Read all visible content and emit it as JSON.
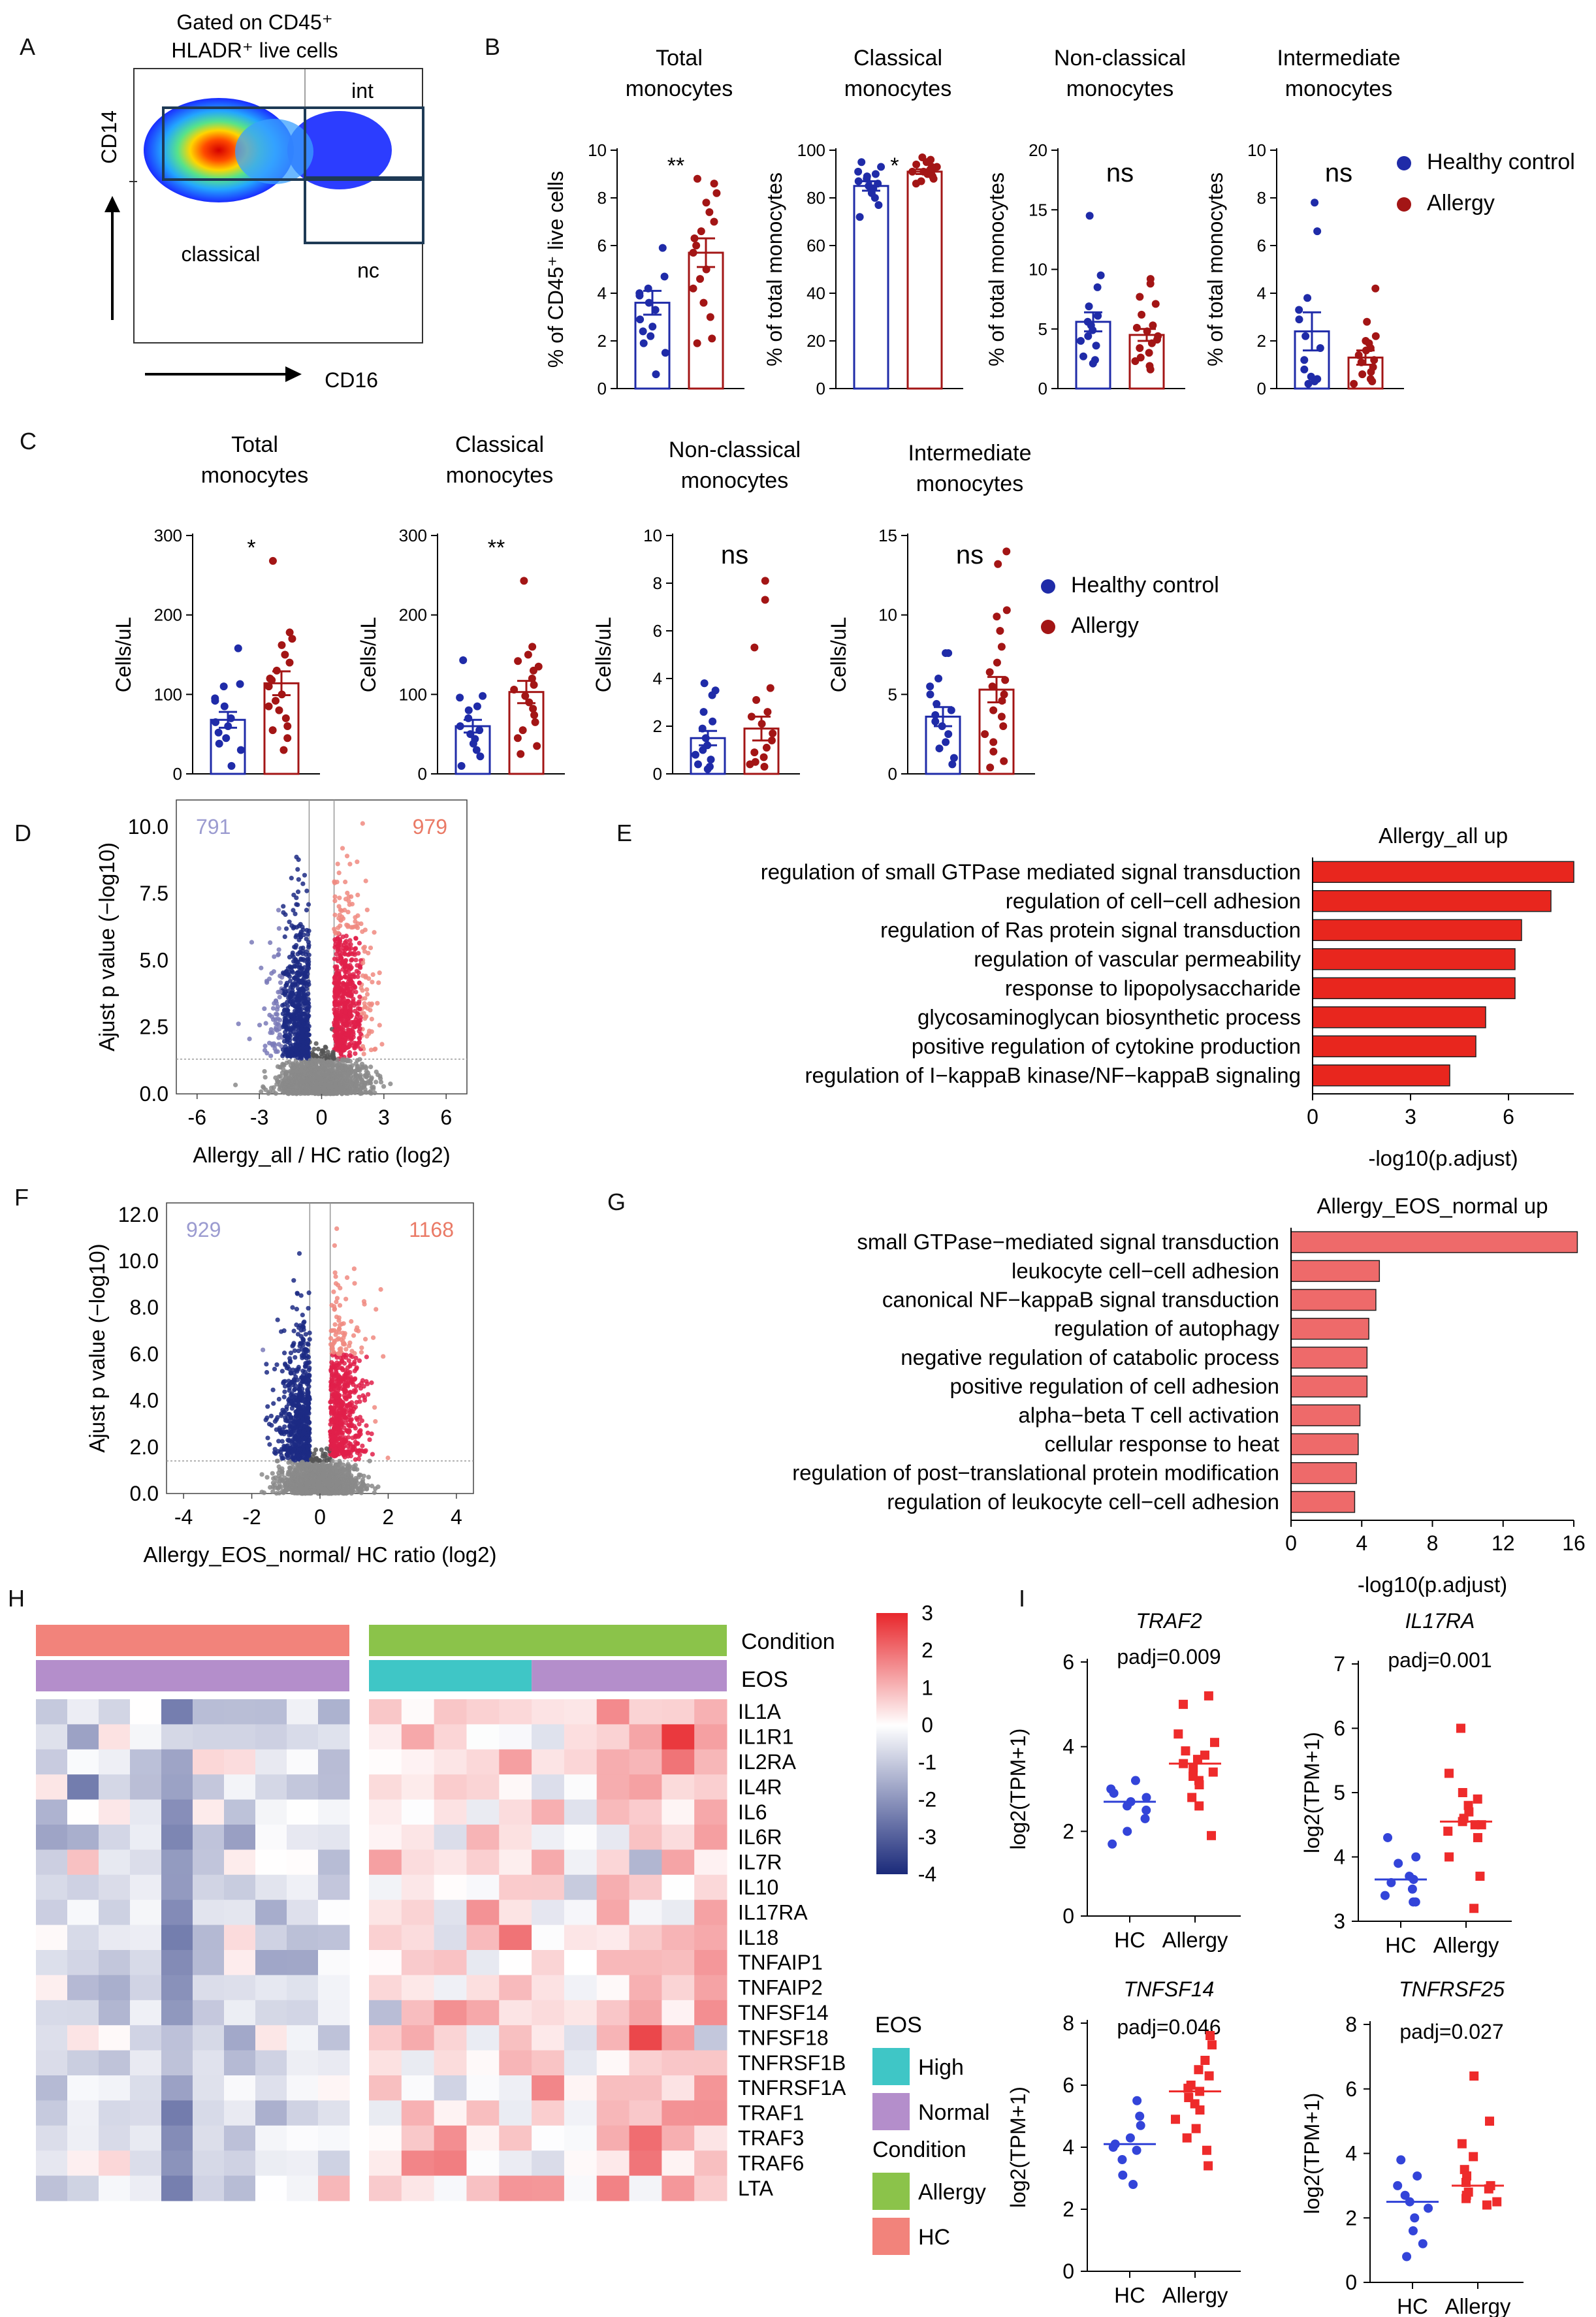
{
  "panel_labels": [
    "A",
    "B",
    "C",
    "D",
    "E",
    "F",
    "G",
    "H",
    "I"
  ],
  "flow": {
    "title_line1": "Gated on CD45⁺",
    "title_line2": "HLADR⁺ live cells",
    "gate_int": "int",
    "gate_classical": "classical",
    "gate_nc": "nc",
    "x_label": "CD16",
    "y_label": "CD14"
  },
  "legend": {
    "healthy": "Healthy control",
    "allergy": "Allergy",
    "healthy_color": "#1f2ba8",
    "allergy_color": "#a31515"
  },
  "heatmap": {
    "condition_label": "Condition",
    "eos_label": "EOS",
    "genes": [
      "IL1A",
      "IL1R1",
      "IL2RA",
      "IL4R",
      "IL6",
      "IL6R",
      "IL7R",
      "IL10",
      "IL17RA",
      "IL18",
      "TNFAIP1",
      "TNFAIP2",
      "TNFSF14",
      "TNFSF18",
      "TNFRSF1B",
      "TNFRSF1A",
      "TRAF1",
      "TRAF3",
      "TRAF6",
      "LTA"
    ],
    "scale_ticks": [
      "3",
      "2",
      "1",
      "0",
      "-1",
      "-2",
      "-3",
      "-4"
    ],
    "scale_range": [
      -4,
      3
    ],
    "legend_eos_title": "EOS",
    "legend_high": "High",
    "legend_normal": "Normal",
    "legend_condition_title": "Condition",
    "legend_allergy": "Allergy",
    "legend_hc": "HC",
    "color_hc": "#f2837b",
    "color_allergy": "#8bc34a",
    "color_high": "#3fc6c6",
    "color_normal": "#b48ecb",
    "hc_columns": 10,
    "allergy_high_columns": 5,
    "allergy_normal_columns": 6
  },
  "chart_data": [
    {
      "id": "B1",
      "type": "bar",
      "title": [
        "Total",
        "monocytes"
      ],
      "ylabel": "% of CD45⁺ live cells",
      "ylim": [
        0,
        10
      ],
      "yticks": [
        0,
        2,
        4,
        6,
        8,
        10
      ],
      "sig": "**",
      "categories": [
        "Healthy control",
        "Allergy"
      ],
      "series": [
        {
          "name": "Healthy control",
          "mean": 3.6,
          "sem": 0.5,
          "points": [
            5.9,
            4.7,
            4.2,
            4.0,
            3.9,
            3.6,
            3.3,
            2.9,
            2.6,
            2.4,
            2.2,
            1.9,
            1.5,
            0.6
          ]
        },
        {
          "name": "Allergy",
          "mean": 5.7,
          "sem": 0.6,
          "points": [
            8.8,
            8.6,
            8.2,
            7.8,
            7.4,
            7.0,
            6.6,
            6.3,
            6.0,
            5.7,
            5.0,
            4.6,
            4.2,
            3.6,
            3.0,
            2.1,
            1.9
          ]
        }
      ]
    },
    {
      "id": "B2",
      "type": "bar",
      "title": [
        "Classical",
        "monocytes"
      ],
      "ylabel": "% of total monocytes",
      "ylim": [
        0,
        100
      ],
      "yticks": [
        0,
        20,
        40,
        60,
        80,
        100
      ],
      "sig": "*",
      "categories": [
        "Healthy control",
        "Allergy"
      ],
      "series": [
        {
          "name": "Healthy control",
          "mean": 85,
          "sem": 2,
          "points": [
            95,
            93,
            91,
            90,
            89,
            88,
            87,
            86,
            85,
            84,
            82,
            80,
            77,
            72
          ]
        },
        {
          "name": "Allergy",
          "mean": 91,
          "sem": 1,
          "points": [
            97,
            96,
            95,
            94,
            93,
            93,
            92,
            92,
            91,
            91,
            90,
            90,
            89,
            88,
            87,
            86
          ]
        }
      ]
    },
    {
      "id": "B3",
      "type": "bar",
      "title": [
        "Non-classical",
        "monocytes"
      ],
      "ylabel": "% of total monocytes",
      "ylim": [
        0,
        20
      ],
      "yticks": [
        0,
        5,
        10,
        15,
        20
      ],
      "sig": "ns",
      "categories": [
        "Healthy control",
        "Allergy"
      ],
      "series": [
        {
          "name": "Healthy control",
          "mean": 5.6,
          "sem": 0.8,
          "points": [
            14.5,
            9.5,
            8.5,
            6.9,
            6.1,
            5.6,
            5.3,
            4.9,
            4.4,
            4.0,
            3.6,
            2.7,
            2.4,
            2.1
          ]
        },
        {
          "name": "Allergy",
          "mean": 4.5,
          "sem": 0.5,
          "points": [
            9.2,
            8.8,
            7.7,
            7.1,
            6.2,
            5.3,
            5.1,
            4.8,
            4.4,
            4.1,
            3.8,
            3.4,
            3.0,
            2.6,
            2.3,
            1.9,
            1.6
          ]
        }
      ]
    },
    {
      "id": "B4",
      "type": "bar",
      "title": [
        "Intermediate",
        "monocytes"
      ],
      "ylabel": "% of total monocytes",
      "ylim": [
        0,
        10
      ],
      "yticks": [
        0,
        2,
        4,
        6,
        8,
        10
      ],
      "sig": "ns",
      "categories": [
        "Healthy control",
        "Allergy"
      ],
      "series": [
        {
          "name": "Healthy control",
          "mean": 2.4,
          "sem": 0.8,
          "points": [
            7.8,
            6.6,
            3.8,
            3.3,
            2.9,
            2.2,
            1.7,
            1.2,
            0.8,
            0.5,
            0.4,
            0.3,
            0.2
          ]
        },
        {
          "name": "Allergy",
          "mean": 1.3,
          "sem": 0.3,
          "points": [
            4.2,
            2.8,
            2.2,
            2.0,
            1.9,
            1.7,
            1.6,
            1.4,
            1.2,
            1.1,
            0.9,
            0.7,
            0.6,
            0.4,
            0.3,
            0.2
          ]
        }
      ]
    },
    {
      "id": "C1",
      "type": "bar",
      "title": [
        "Total",
        "monocytes"
      ],
      "ylabel": "Cells/uL",
      "ylim": [
        0,
        300
      ],
      "yticks": [
        0,
        100,
        200,
        300
      ],
      "sig": "*",
      "categories": [
        "Healthy control",
        "Allergy"
      ],
      "series": [
        {
          "name": "Healthy control",
          "mean": 68,
          "sem": 10,
          "points": [
            158,
            113,
            110,
            95,
            92,
            85,
            70,
            65,
            60,
            52,
            45,
            38,
            30,
            10
          ]
        },
        {
          "name": "Allergy",
          "mean": 114,
          "sem": 15,
          "points": [
            268,
            178,
            170,
            162,
            150,
            140,
            130,
            120,
            118,
            110,
            100,
            92,
            85,
            80,
            70,
            60,
            55,
            45,
            30
          ]
        }
      ]
    },
    {
      "id": "C2",
      "type": "bar",
      "title": [
        "Classical",
        "monocytes"
      ],
      "ylabel": "Cells/uL",
      "ylim": [
        0,
        300
      ],
      "yticks": [
        0,
        100,
        200,
        300
      ],
      "sig": "**",
      "categories": [
        "Healthy control",
        "Allergy"
      ],
      "series": [
        {
          "name": "Healthy control",
          "mean": 60,
          "sem": 8,
          "points": [
            143,
            98,
            96,
            85,
            80,
            70,
            60,
            55,
            50,
            44,
            38,
            30,
            22,
            10
          ]
        },
        {
          "name": "Allergy",
          "mean": 103,
          "sem": 14,
          "points": [
            243,
            160,
            150,
            142,
            135,
            130,
            120,
            112,
            106,
            98,
            90,
            82,
            74,
            65,
            55,
            45,
            35,
            25
          ]
        }
      ]
    },
    {
      "id": "C3",
      "type": "bar",
      "title": [
        "Non-classical",
        "monocytes"
      ],
      "ylabel": "Cells/uL",
      "ylim": [
        0,
        10
      ],
      "yticks": [
        0,
        2,
        4,
        6,
        8,
        10
      ],
      "sig": "ns",
      "categories": [
        "Healthy control",
        "Allergy"
      ],
      "series": [
        {
          "name": "Healthy control",
          "mean": 1.5,
          "sem": 0.3,
          "points": [
            3.8,
            3.5,
            3.3,
            2.6,
            2.2,
            1.9,
            1.5,
            1.2,
            1.0,
            0.8,
            0.6,
            0.4,
            0.3,
            0.2
          ]
        },
        {
          "name": "Allergy",
          "mean": 1.9,
          "sem": 0.5,
          "points": [
            8.1,
            7.3,
            5.3,
            3.6,
            3.1,
            2.6,
            2.4,
            2.1,
            1.7,
            1.4,
            1.1,
            0.9,
            0.7,
            0.5,
            0.4,
            0.3
          ]
        }
      ]
    },
    {
      "id": "C4",
      "type": "bar",
      "title": [
        "Intermediate",
        "monocytes"
      ],
      "ylabel": "Cells/uL",
      "ylim": [
        0,
        15
      ],
      "yticks": [
        0,
        5,
        10,
        15
      ],
      "sig": "ns",
      "categories": [
        "Healthy control",
        "Allergy"
      ],
      "series": [
        {
          "name": "Healthy control",
          "mean": 3.6,
          "sem": 0.6,
          "points": [
            7.6,
            7.6,
            6.0,
            5.5,
            5.0,
            4.4,
            4.0,
            3.7,
            3.3,
            3.0,
            2.5,
            2.0,
            1.6,
            1.0,
            0.6
          ]
        },
        {
          "name": "Allergy",
          "mean": 5.3,
          "sem": 0.8,
          "points": [
            14.0,
            13.2,
            10.3,
            9.9,
            9.0,
            8.0,
            7.0,
            6.4,
            5.9,
            5.5,
            5.0,
            4.6,
            4.0,
            3.6,
            3.0,
            2.5,
            2.0,
            1.4,
            0.8,
            0.4
          ]
        }
      ]
    },
    {
      "id": "D",
      "type": "scatter",
      "subtype": "volcano",
      "xlabel": "Allergy_all / HC ratio (log2)",
      "ylabel": "Ajust p value (−log10)",
      "xlim": [
        -7,
        7
      ],
      "ylim": [
        0,
        11
      ],
      "xticks": [
        "-6",
        "-3",
        "0",
        "3",
        "6"
      ],
      "yticks": [
        "0.0",
        "2.5",
        "5.0",
        "7.5",
        "10.0"
      ],
      "down_count": "791",
      "up_count": "979",
      "fc_threshold": 0.6,
      "p_threshold": 1.3
    },
    {
      "id": "E",
      "type": "bar",
      "orientation": "horizontal",
      "title": "Allergy_all up",
      "xlabel": "-log10(p.adjust)",
      "xlim": [
        0,
        8
      ],
      "xticks": [
        "0",
        "3",
        "6"
      ],
      "color": "#e8261e",
      "categories": [
        "regulation of small GTPase mediated signal transduction",
        "regulation of cell−cell adhesion",
        "regulation of Ras protein signal transduction",
        "regulation of vascular permeability",
        "response to lipopolysaccharide",
        "glycosaminoglycan biosynthetic process",
        "positive regulation of cytokine production",
        "regulation of I−kappaB kinase/NF−kappaB signaling"
      ],
      "values": [
        8.0,
        7.3,
        6.4,
        6.2,
        6.2,
        5.3,
        5.0,
        4.2
      ]
    },
    {
      "id": "F",
      "type": "scatter",
      "subtype": "volcano",
      "xlabel": "Allergy_EOS_normal/ HC ratio (log2)",
      "ylabel": "Ajust p value (−log10)",
      "xlim": [
        -4.5,
        4.5
      ],
      "ylim": [
        0,
        12.5
      ],
      "xticks": [
        "-4",
        "-2",
        "0",
        "2",
        "4"
      ],
      "yticks": [
        "0.0",
        "2.0",
        "4.0",
        "6.0",
        "8.0",
        "10.0",
        "12.0"
      ],
      "down_count": "929",
      "up_count": "1168",
      "fc_threshold": 0.3,
      "p_threshold": 1.4
    },
    {
      "id": "G",
      "type": "bar",
      "orientation": "horizontal",
      "title": "Allergy_EOS_normal up",
      "xlabel": "-log10(p.adjust)",
      "xlim": [
        0,
        16
      ],
      "xticks": [
        "0",
        "4",
        "8",
        "12",
        "16"
      ],
      "color": "#ee6a6a",
      "categories": [
        "small GTPase−mediated signal transduction",
        "leukocyte cell−cell adhesion",
        "canonical NF−kappaB signal transduction",
        "regulation of autophagy",
        "negative regulation of catabolic process",
        "positive regulation of cell adhesion",
        "alpha−beta T cell activation",
        "cellular response to heat",
        "regulation of post−translational protein modification",
        "regulation of leukocyte cell−cell adhesion"
      ],
      "values": [
        16.2,
        5.0,
        4.8,
        4.4,
        4.3,
        4.3,
        3.9,
        3.8,
        3.7,
        3.6
      ]
    },
    {
      "id": "I1",
      "type": "scatter",
      "subtype": "dot",
      "gene": "TRAF2",
      "padj": "padj=0.009",
      "ylabel": "log2(TPM+1)",
      "ylim": [
        0,
        6
      ],
      "yticks": [
        0,
        2,
        4,
        6
      ],
      "categories": [
        "HC",
        "Allergy"
      ],
      "groups": [
        {
          "name": "HC",
          "median": 2.7,
          "points": [
            3.2,
            3.0,
            2.9,
            2.8,
            2.7,
            2.6,
            2.5,
            2.3,
            2.0,
            1.7
          ]
        },
        {
          "name": "Allergy",
          "median": 3.6,
          "points": [
            5.2,
            5.0,
            4.3,
            4.1,
            3.9,
            3.8,
            3.7,
            3.6,
            3.5,
            3.4,
            3.3,
            3.2,
            3.1,
            2.8,
            2.6,
            1.9
          ]
        }
      ]
    },
    {
      "id": "I2",
      "type": "scatter",
      "subtype": "dot",
      "gene": "IL17RA",
      "padj": "padj=0.001",
      "ylabel": "log2(TPM+1)",
      "ylim": [
        3,
        7
      ],
      "yticks": [
        3,
        4,
        5,
        6,
        7
      ],
      "categories": [
        "HC",
        "Allergy"
      ],
      "groups": [
        {
          "name": "HC",
          "median": 3.65,
          "points": [
            4.3,
            4.0,
            3.9,
            3.7,
            3.65,
            3.6,
            3.5,
            3.4,
            3.3,
            3.3
          ]
        },
        {
          "name": "Allergy",
          "median": 4.55,
          "points": [
            6.0,
            5.3,
            5.0,
            4.9,
            4.8,
            4.7,
            4.6,
            4.55,
            4.5,
            4.5,
            4.4,
            4.3,
            4.0,
            3.7,
            3.2
          ]
        }
      ]
    },
    {
      "id": "I3",
      "type": "scatter",
      "subtype": "dot",
      "gene": "TNFSF14",
      "padj": "padj=0.046",
      "ylabel": "log2(TPM+1)",
      "ylim": [
        0,
        8
      ],
      "yticks": [
        0,
        2,
        4,
        6,
        8
      ],
      "categories": [
        "HC",
        "Allergy"
      ],
      "groups": [
        {
          "name": "HC",
          "median": 4.1,
          "points": [
            5.5,
            5.0,
            4.7,
            4.3,
            4.1,
            4.0,
            3.9,
            3.6,
            3.1,
            2.8
          ]
        },
        {
          "name": "Allergy",
          "median": 5.8,
          "points": [
            7.6,
            7.3,
            6.8,
            6.5,
            6.3,
            6.0,
            5.9,
            5.8,
            5.6,
            5.4,
            5.2,
            4.9,
            4.6,
            4.3,
            3.9,
            3.4
          ]
        }
      ]
    },
    {
      "id": "I4",
      "type": "scatter",
      "subtype": "dot",
      "gene": "TNFRSF25",
      "padj": "padj=0.027",
      "ylabel": "log2(TPM+1)",
      "ylim": [
        0,
        8
      ],
      "yticks": [
        0,
        2,
        4,
        6,
        8
      ],
      "categories": [
        "HC",
        "Allergy"
      ],
      "groups": [
        {
          "name": "HC",
          "median": 2.5,
          "points": [
            3.8,
            3.3,
            3.0,
            2.7,
            2.5,
            2.3,
            2.0,
            1.6,
            1.2,
            0.8
          ]
        },
        {
          "name": "Allergy",
          "median": 3.0,
          "points": [
            6.4,
            5.0,
            4.3,
            3.9,
            3.5,
            3.3,
            3.1,
            3.0,
            2.9,
            2.8,
            2.7,
            2.6,
            2.5,
            2.4
          ]
        }
      ]
    }
  ]
}
